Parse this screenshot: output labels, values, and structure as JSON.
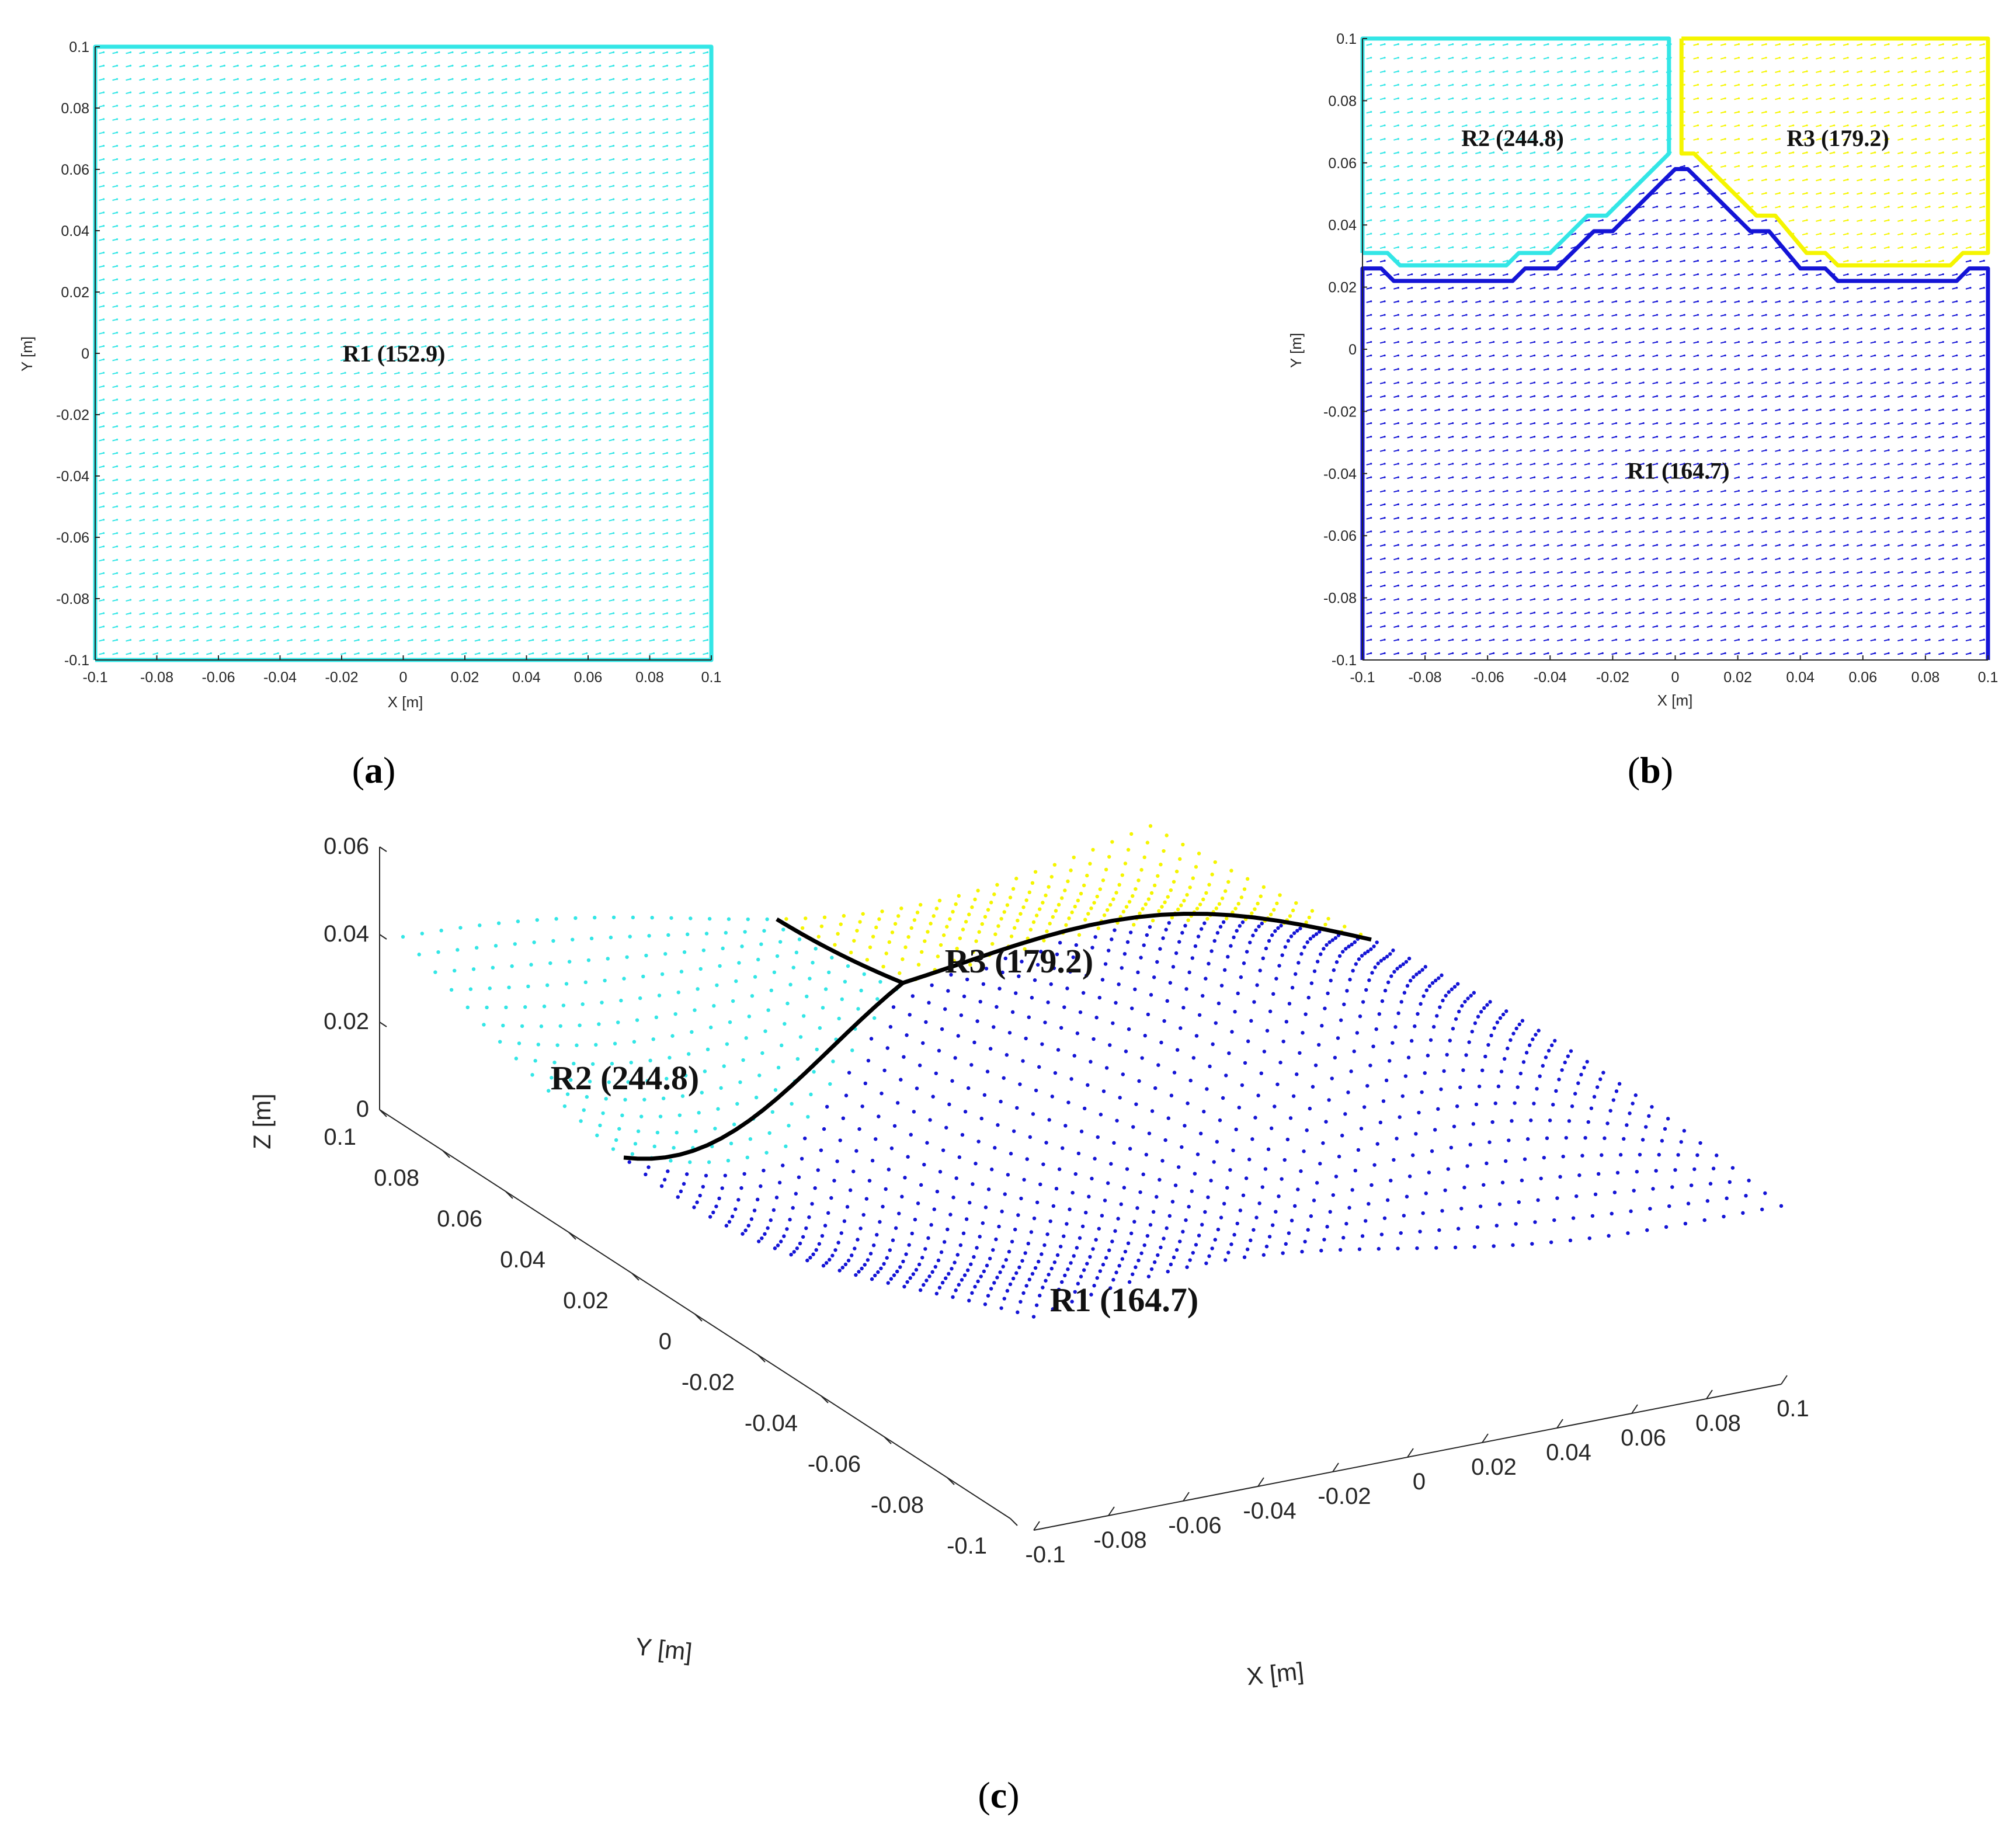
{
  "colors": {
    "R1_a": "#33e6e6",
    "R1_bc": "#1414d6",
    "R2": "#33e6e6",
    "R3": "#f5f500",
    "boundary_3d": "#000000"
  },
  "chart_data": [
    {
      "panel": "(a)",
      "panel_letter": "a",
      "type": "scatter",
      "xlabel": "X [m]",
      "ylabel": "Y [m]",
      "xlim": [
        -0.1,
        0.1
      ],
      "ylim": [
        -0.1,
        0.1
      ],
      "xticks": [
        "-0.1",
        "-0.08",
        "-0.06",
        "-0.04",
        "-0.02",
        "0",
        "0.02",
        "0.04",
        "0.06",
        "0.08",
        "0.1"
      ],
      "yticks": [
        "-0.1",
        "-0.08",
        "-0.06",
        "-0.04",
        "-0.02",
        "0",
        "0.02",
        "0.04",
        "0.06",
        "0.08",
        "0.1"
      ],
      "regions": [
        {
          "name": "R1",
          "value": 152.9,
          "label": "R1 (152.9)",
          "label_pos": [
            -0.003,
            0.0
          ],
          "color": "#33e6e6",
          "boundary": [
            [
              -0.1,
              -0.1
            ],
            [
              0.1,
              -0.1
            ],
            [
              0.1,
              0.1
            ],
            [
              -0.1,
              0.1
            ],
            [
              -0.1,
              -0.1
            ]
          ]
        }
      ]
    },
    {
      "panel": "(b)",
      "panel_letter": "b",
      "type": "scatter",
      "xlabel": "X [m]",
      "ylabel": "Y [m]",
      "xlim": [
        -0.1,
        0.1
      ],
      "ylim": [
        -0.1,
        0.1
      ],
      "xticks": [
        "-0.1",
        "-0.08",
        "-0.06",
        "-0.04",
        "-0.02",
        "0",
        "0.02",
        "0.04",
        "0.06",
        "0.08",
        "0.1"
      ],
      "yticks": [
        "-0.1",
        "-0.08",
        "-0.06",
        "-0.04",
        "-0.02",
        "0",
        "0.02",
        "0.04",
        "0.06",
        "0.08",
        "0.1"
      ],
      "regions": [
        {
          "name": "R1",
          "value": 164.7,
          "label": "R1 (164.7)",
          "label_pos": [
            0.001,
            -0.039
          ],
          "color": "#1414d6",
          "boundary": [
            [
              -0.1,
              -0.1
            ],
            [
              -0.1,
              0.026
            ],
            [
              -0.094,
              0.026
            ],
            [
              -0.09,
              0.022
            ],
            [
              -0.052,
              0.022
            ],
            [
              -0.048,
              0.026
            ],
            [
              -0.038,
              0.026
            ],
            [
              -0.026,
              0.038
            ],
            [
              -0.02,
              0.038
            ],
            [
              0,
              0.058
            ],
            [
              0.004,
              0.058
            ],
            [
              0.024,
              0.038
            ],
            [
              0.03,
              0.038
            ],
            [
              0.04,
              0.026
            ],
            [
              0.048,
              0.026
            ],
            [
              0.052,
              0.022
            ],
            [
              0.09,
              0.022
            ],
            [
              0.094,
              0.026
            ],
            [
              0.1,
              0.026
            ],
            [
              0.1,
              -0.1
            ]
          ]
        },
        {
          "name": "R2",
          "value": 244.8,
          "label": "R2 (244.8)",
          "label_pos": [
            -0.052,
            0.068
          ],
          "color": "#33e6e6",
          "boundary": [
            [
              -0.1,
              0.031
            ],
            [
              -0.1,
              0.1
            ],
            [
              -0.002,
              0.1
            ],
            [
              -0.002,
              0.063
            ],
            [
              -0.022,
              0.043
            ],
            [
              -0.028,
              0.043
            ],
            [
              -0.04,
              0.031
            ],
            [
              -0.05,
              0.031
            ],
            [
              -0.054,
              0.027
            ],
            [
              -0.088,
              0.027
            ],
            [
              -0.092,
              0.031
            ],
            [
              -0.1,
              0.031
            ]
          ]
        },
        {
          "name": "R3",
          "value": 179.2,
          "label": "R3 (179.2)",
          "label_pos": [
            0.052,
            0.068
          ],
          "color": "#f5f500",
          "boundary": [
            [
              0.002,
              0.1
            ],
            [
              0.1,
              0.1
            ],
            [
              0.1,
              0.031
            ],
            [
              0.092,
              0.031
            ],
            [
              0.088,
              0.027
            ],
            [
              0.052,
              0.027
            ],
            [
              0.048,
              0.031
            ],
            [
              0.042,
              0.031
            ],
            [
              0.032,
              0.043
            ],
            [
              0.026,
              0.043
            ],
            [
              0.006,
              0.063
            ],
            [
              0.002,
              0.063
            ],
            [
              0.002,
              0.1
            ]
          ]
        }
      ]
    },
    {
      "panel": "(c)",
      "panel_letter": "c",
      "type": "scatter",
      "xlabel": "X [m]",
      "ylabel": "Y [m]",
      "zlabel": "Z [m]",
      "xlim": [
        -0.1,
        0.1
      ],
      "ylim": [
        -0.1,
        0.1
      ],
      "zlim": [
        0,
        0.06
      ],
      "xticks": [
        "-0.1",
        "-0.08",
        "-0.06",
        "-0.04",
        "-0.02",
        "0",
        "0.02",
        "0.04",
        "0.06",
        "0.08",
        "0.1"
      ],
      "yticks": [
        "-0.1",
        "-0.08",
        "-0.06",
        "-0.04",
        "-0.02",
        "0",
        "0.02",
        "0.04",
        "0.06",
        "0.08",
        "0.1"
      ],
      "zticks": [
        "0",
        "0.02",
        "0.04",
        "0.06"
      ],
      "regions": [
        {
          "name": "R1",
          "value": 164.7,
          "label": "R1 (164.7)",
          "color": "#1414d6"
        },
        {
          "name": "R2",
          "value": 244.8,
          "label": "R2 (244.8)",
          "color": "#33e6e6"
        },
        {
          "name": "R3",
          "value": 179.2,
          "label": "R3 (179.2)",
          "color": "#f5f500"
        }
      ]
    }
  ]
}
